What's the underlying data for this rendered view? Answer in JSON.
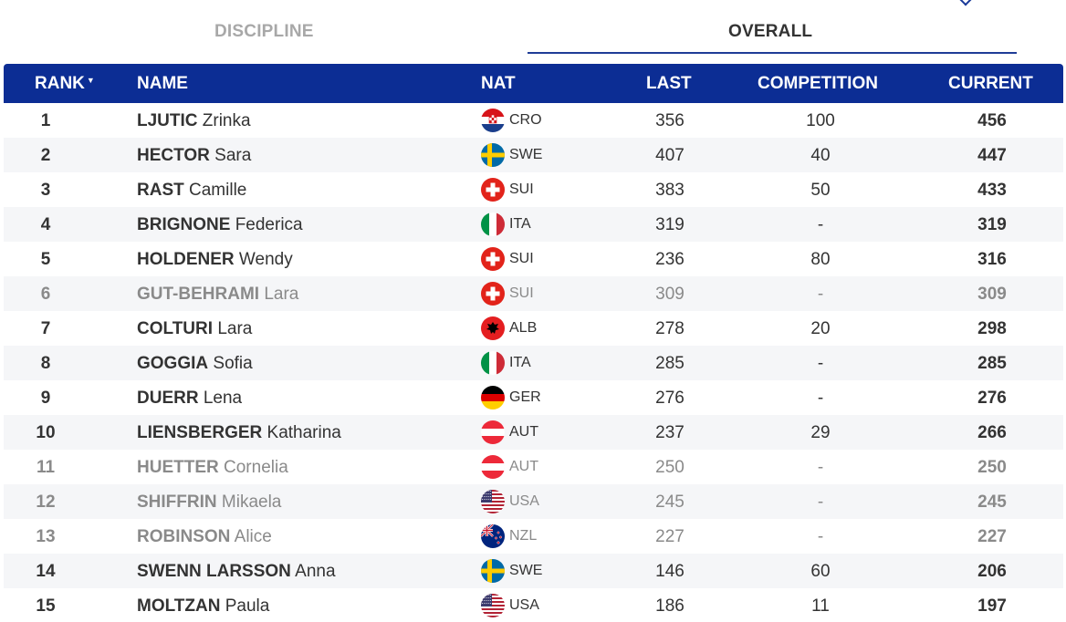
{
  "tabs": {
    "discipline": "DISCIPLINE",
    "overall": "OVERALL"
  },
  "columns": {
    "rank": "RANK",
    "name": "NAME",
    "nat": "NAT",
    "last": "LAST",
    "competition": "COMPETITION",
    "current": "CURRENT"
  },
  "colors": {
    "header_bg": "#0c2d94",
    "tab_underline": "#1f3d97",
    "alt_row": "#f5f6f8"
  },
  "rows": [
    {
      "rank": "1",
      "last_name": "LJUTIC",
      "first_name": "Zrinka",
      "nat": "CRO",
      "flag": "cro-flag-icon",
      "last": "356",
      "competition": "100",
      "current": "456",
      "muted": false
    },
    {
      "rank": "2",
      "last_name": "HECTOR",
      "first_name": "Sara",
      "nat": "SWE",
      "flag": "swe-flag-icon",
      "last": "407",
      "competition": "40",
      "current": "447",
      "muted": false
    },
    {
      "rank": "3",
      "last_name": "RAST",
      "first_name": "Camille",
      "nat": "SUI",
      "flag": "sui-flag-icon",
      "last": "383",
      "competition": "50",
      "current": "433",
      "muted": false
    },
    {
      "rank": "4",
      "last_name": "BRIGNONE",
      "first_name": "Federica",
      "nat": "ITA",
      "flag": "ita-flag-icon",
      "last": "319",
      "competition": "-",
      "current": "319",
      "muted": false
    },
    {
      "rank": "5",
      "last_name": "HOLDENER",
      "first_name": "Wendy",
      "nat": "SUI",
      "flag": "sui-flag-icon",
      "last": "236",
      "competition": "80",
      "current": "316",
      "muted": false
    },
    {
      "rank": "6",
      "last_name": "GUT-BEHRAMI",
      "first_name": "Lara",
      "nat": "SUI",
      "flag": "sui-flag-icon",
      "last": "309",
      "competition": "-",
      "current": "309",
      "muted": true
    },
    {
      "rank": "7",
      "last_name": "COLTURI",
      "first_name": "Lara",
      "nat": "ALB",
      "flag": "alb-flag-icon",
      "last": "278",
      "competition": "20",
      "current": "298",
      "muted": false
    },
    {
      "rank": "8",
      "last_name": "GOGGIA",
      "first_name": "Sofia",
      "nat": "ITA",
      "flag": "ita-flag-icon",
      "last": "285",
      "competition": "-",
      "current": "285",
      "muted": false
    },
    {
      "rank": "9",
      "last_name": "DUERR",
      "first_name": "Lena",
      "nat": "GER",
      "flag": "ger-flag-icon",
      "last": "276",
      "competition": "-",
      "current": "276",
      "muted": false
    },
    {
      "rank": "10",
      "last_name": "LIENSBERGER",
      "first_name": "Katharina",
      "nat": "AUT",
      "flag": "aut-flag-icon",
      "last": "237",
      "competition": "29",
      "current": "266",
      "muted": false
    },
    {
      "rank": "11",
      "last_name": "HUETTER",
      "first_name": "Cornelia",
      "nat": "AUT",
      "flag": "aut-flag-icon",
      "last": "250",
      "competition": "-",
      "current": "250",
      "muted": true
    },
    {
      "rank": "12",
      "last_name": "SHIFFRIN",
      "first_name": "Mikaela",
      "nat": "USA",
      "flag": "usa-flag-icon",
      "last": "245",
      "competition": "-",
      "current": "245",
      "muted": true
    },
    {
      "rank": "13",
      "last_name": "ROBINSON",
      "first_name": "Alice",
      "nat": "NZL",
      "flag": "nzl-flag-icon",
      "last": "227",
      "competition": "-",
      "current": "227",
      "muted": true
    },
    {
      "rank": "14",
      "last_name": "SWENN LARSSON",
      "first_name": "Anna",
      "nat": "SWE",
      "flag": "swe-flag-icon",
      "last": "146",
      "competition": "60",
      "current": "206",
      "muted": false
    },
    {
      "rank": "15",
      "last_name": "MOLTZAN",
      "first_name": "Paula",
      "nat": "USA",
      "flag": "usa-flag-icon",
      "last": "186",
      "competition": "11",
      "current": "197",
      "muted": false
    }
  ]
}
